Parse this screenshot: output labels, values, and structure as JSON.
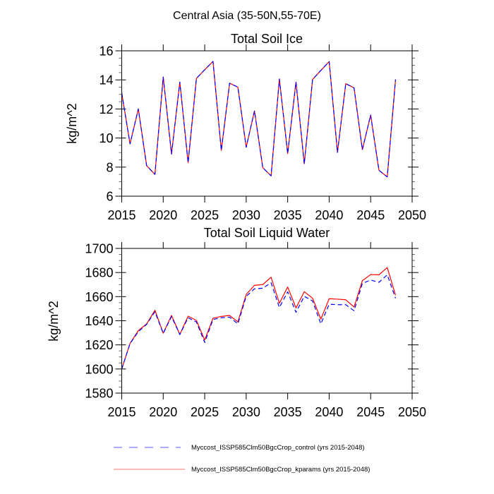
{
  "figure_title": "Central Asia (35-50N,55-70E)",
  "legend": [
    {
      "label": "Myccost_ISSP585Clm50BgcCrop_control (yrs 2015-2048)",
      "color": "#0000ff",
      "style": "dashed"
    },
    {
      "label": "Myccost_ISSP585Clm50BgcCrop_kparams (yrs 2015-2048)",
      "color": "#ff0000",
      "style": "solid"
    }
  ],
  "chart_data": [
    {
      "type": "line",
      "title": "Total Soil Ice",
      "xlabel": "",
      "ylabel": "kg/m^2",
      "xlim": [
        2015,
        2050
      ],
      "ylim": [
        6,
        16
      ],
      "xticks": [
        2015,
        2020,
        2025,
        2030,
        2035,
        2040,
        2045,
        2050
      ],
      "xtick_labels": [
        "2015",
        "2020",
        "2025",
        "2030",
        "2035",
        "2040",
        "2045",
        "2050"
      ],
      "yticks": [
        6,
        8,
        10,
        12,
        14,
        16
      ],
      "ytick_labels": [
        "6",
        "8",
        "10",
        "12",
        "14",
        "16"
      ],
      "y_minor_step": 0.5,
      "grid": false,
      "x": [
        2015,
        2016,
        2017,
        2018,
        2019,
        2020,
        2021,
        2022,
        2023,
        2024,
        2025,
        2026,
        2027,
        2028,
        2029,
        2030,
        2031,
        2032,
        2033,
        2034,
        2035,
        2036,
        2037,
        2038,
        2039,
        2040,
        2041,
        2042,
        2043,
        2044,
        2045,
        2046,
        2047,
        2048
      ],
      "series": [
        {
          "name": "Myccost_ISSP585Clm50BgcCrop_control (yrs 2015-2048)",
          "color": "#0000ff",
          "dash": true,
          "values": [
            13.1,
            9.6,
            12.0,
            8.1,
            7.5,
            14.2,
            8.9,
            13.85,
            8.3,
            14.1,
            14.7,
            15.27,
            9.15,
            13.77,
            13.5,
            9.37,
            11.87,
            7.96,
            7.4,
            14.06,
            8.93,
            13.85,
            8.23,
            14.03,
            14.65,
            15.26,
            9.01,
            13.74,
            13.45,
            9.2,
            11.58,
            7.78,
            7.33,
            14.03
          ]
        },
        {
          "name": "Myccost_ISSP585Clm50BgcCrop_kparams (yrs 2015-2048)",
          "color": "#ff0000",
          "dash": false,
          "values": [
            13.1,
            9.6,
            12.0,
            8.1,
            7.5,
            14.2,
            8.9,
            13.85,
            8.3,
            14.1,
            14.7,
            15.27,
            9.15,
            13.77,
            13.5,
            9.37,
            11.87,
            7.96,
            7.4,
            14.06,
            8.93,
            13.85,
            8.23,
            14.03,
            14.65,
            15.26,
            9.01,
            13.74,
            13.45,
            9.2,
            11.58,
            7.78,
            7.33,
            14.03
          ]
        }
      ]
    },
    {
      "type": "line",
      "title": "Total Soil Liquid Water",
      "xlabel": "",
      "ylabel": "kg/m^2",
      "xlim": [
        2015,
        2050
      ],
      "ylim": [
        1580,
        1700
      ],
      "xticks": [
        2015,
        2020,
        2025,
        2030,
        2035,
        2040,
        2045,
        2050
      ],
      "xtick_labels": [
        "2015",
        "2020",
        "2025",
        "2030",
        "2035",
        "2040",
        "2045",
        "2050"
      ],
      "yticks": [
        1580,
        1600,
        1620,
        1640,
        1660,
        1680,
        1700
      ],
      "ytick_labels": [
        "1580",
        "1600",
        "1620",
        "1640",
        "1660",
        "1680",
        "1700"
      ],
      "y_minor_step": 5,
      "grid": false,
      "x": [
        2015,
        2016,
        2017,
        2018,
        2019,
        2020,
        2021,
        2022,
        2023,
        2024,
        2025,
        2026,
        2027,
        2028,
        2029,
        2030,
        2031,
        2032,
        2033,
        2034,
        2035,
        2036,
        2037,
        2038,
        2039,
        2040,
        2041,
        2042,
        2043,
        2044,
        2045,
        2046,
        2047,
        2048
      ],
      "series": [
        {
          "name": "Myccost_ISSP585Clm50BgcCrop_control (yrs 2015-2048)",
          "color": "#0000ff",
          "dash": true,
          "values": [
            1600,
            1621,
            1631,
            1637,
            1647.5,
            1629.5,
            1643.5,
            1628.5,
            1642.5,
            1639,
            1622,
            1641,
            1642.5,
            1643,
            1637.4,
            1660.3,
            1666.5,
            1667,
            1671.5,
            1651,
            1664,
            1647,
            1660.3,
            1656.4,
            1637.4,
            1653.7,
            1653.3,
            1653.3,
            1648.3,
            1670.9,
            1673.8,
            1671.9,
            1678.1,
            1658.7
          ]
        },
        {
          "name": "Myccost_ISSP585Clm50BgcCrop_kparams (yrs 2015-2048)",
          "color": "#ff0000",
          "dash": false,
          "values": [
            1600,
            1621.2,
            1631.8,
            1637.4,
            1648.7,
            1629.7,
            1644.4,
            1628.7,
            1643.8,
            1640.3,
            1624,
            1642.1,
            1643.6,
            1644.4,
            1639,
            1661.8,
            1669.4,
            1670,
            1676.1,
            1654.5,
            1668,
            1650.6,
            1664.1,
            1658.7,
            1641.3,
            1658.3,
            1657.9,
            1657.4,
            1651.4,
            1673.2,
            1678.3,
            1678.1,
            1684.1,
            1661.2
          ]
        }
      ]
    }
  ]
}
